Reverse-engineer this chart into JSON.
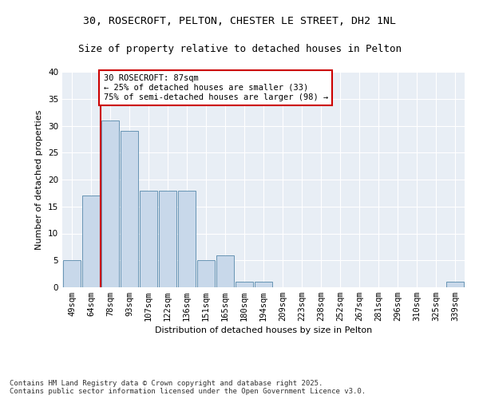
{
  "title1": "30, ROSECROFT, PELTON, CHESTER LE STREET, DH2 1NL",
  "title2": "Size of property relative to detached houses in Pelton",
  "xlabel": "Distribution of detached houses by size in Pelton",
  "ylabel": "Number of detached properties",
  "categories": [
    "49sqm",
    "64sqm",
    "78sqm",
    "93sqm",
    "107sqm",
    "122sqm",
    "136sqm",
    "151sqm",
    "165sqm",
    "180sqm",
    "194sqm",
    "209sqm",
    "223sqm",
    "238sqm",
    "252sqm",
    "267sqm",
    "281sqm",
    "296sqm",
    "310sqm",
    "325sqm",
    "339sqm"
  ],
  "values": [
    5,
    17,
    31,
    29,
    18,
    18,
    18,
    5,
    6,
    1,
    1,
    0,
    0,
    0,
    0,
    0,
    0,
    0,
    0,
    0,
    1
  ],
  "bar_color": "#c8d8ea",
  "bar_edge_color": "#5588aa",
  "vline_color": "#cc0000",
  "vline_pos": 1.5,
  "annotation_text": "30 ROSECROFT: 87sqm\n← 25% of detached houses are smaller (33)\n75% of semi-detached houses are larger (98) →",
  "annotation_box_color": "#ffffff",
  "annotation_box_edge": "#cc0000",
  "ylim": [
    0,
    40
  ],
  "yticks": [
    0,
    5,
    10,
    15,
    20,
    25,
    30,
    35,
    40
  ],
  "plot_bg": "#e8eef5",
  "fig_bg": "#ffffff",
  "grid_color": "#ffffff",
  "footer_text": "Contains HM Land Registry data © Crown copyright and database right 2025.\nContains public sector information licensed under the Open Government Licence v3.0."
}
